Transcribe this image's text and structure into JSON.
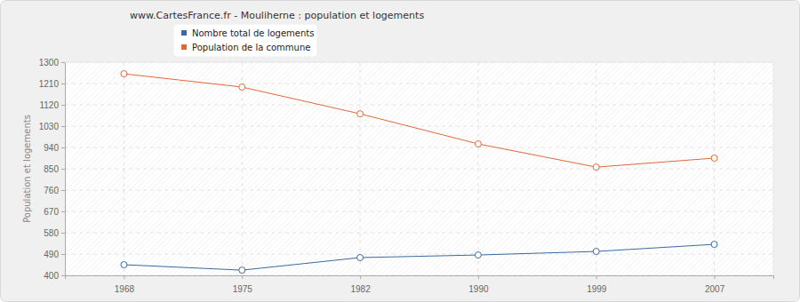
{
  "chart_data": {
    "type": "line",
    "title": "www.CartesFrance.fr - Mouliherne : population et logements",
    "y_label": "Population et logements",
    "categories": [
      "1968",
      "1975",
      "1982",
      "1990",
      "1999",
      "2007"
    ],
    "series": [
      {
        "name": "Nombre total de logements",
        "color": "#3b6a9e",
        "values": [
          445,
          422,
          475,
          486,
          501,
          531
        ]
      },
      {
        "name": "Population de la commune",
        "color": "#e2683c",
        "values": [
          1251,
          1195,
          1082,
          955,
          857,
          895
        ]
      }
    ],
    "ylim": [
      400,
      1300
    ],
    "yticks": [
      400,
      490,
      580,
      670,
      760,
      850,
      940,
      1030,
      1120,
      1210,
      1300
    ],
    "grid": true,
    "marker": "circle",
    "legend": "top"
  }
}
